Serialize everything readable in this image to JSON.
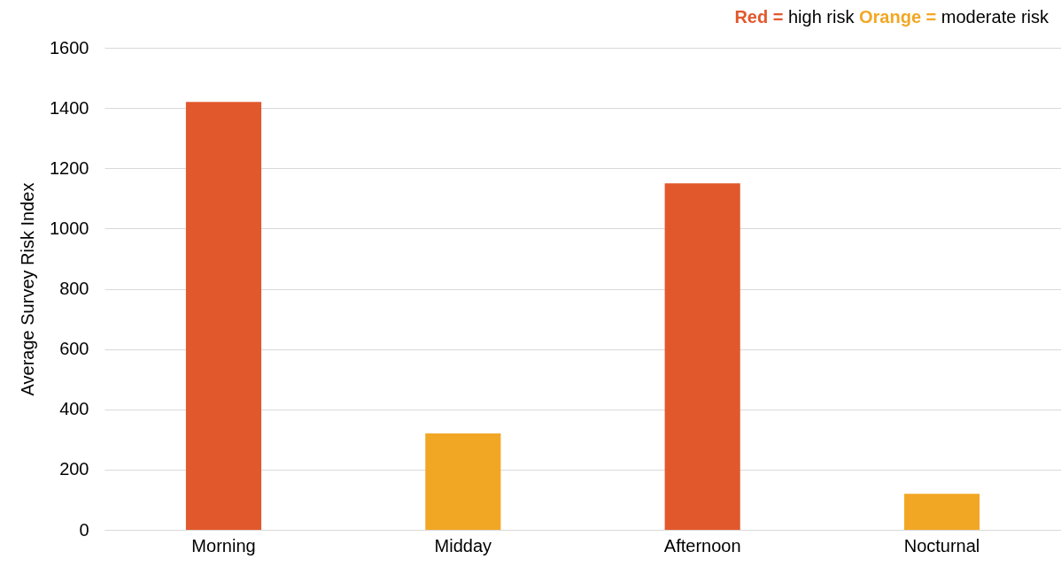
{
  "chart_data": {
    "type": "bar",
    "ylabel": "Average Survey Risk Index",
    "categories": [
      "Morning",
      "Midday",
      "Afternoon",
      "Nocturnal"
    ],
    "values": [
      1420,
      320,
      1150,
      120
    ],
    "colors": [
      "#e2582d",
      "#f2a724",
      "#e2582d",
      "#f2a724"
    ],
    "ylim": [
      0,
      1600
    ],
    "yticks": [
      0,
      200,
      400,
      600,
      800,
      1000,
      1200,
      1400,
      1600
    ],
    "grid": "y",
    "annotations": [
      "Red = high risk",
      "Orange = moderate risk"
    ]
  }
}
